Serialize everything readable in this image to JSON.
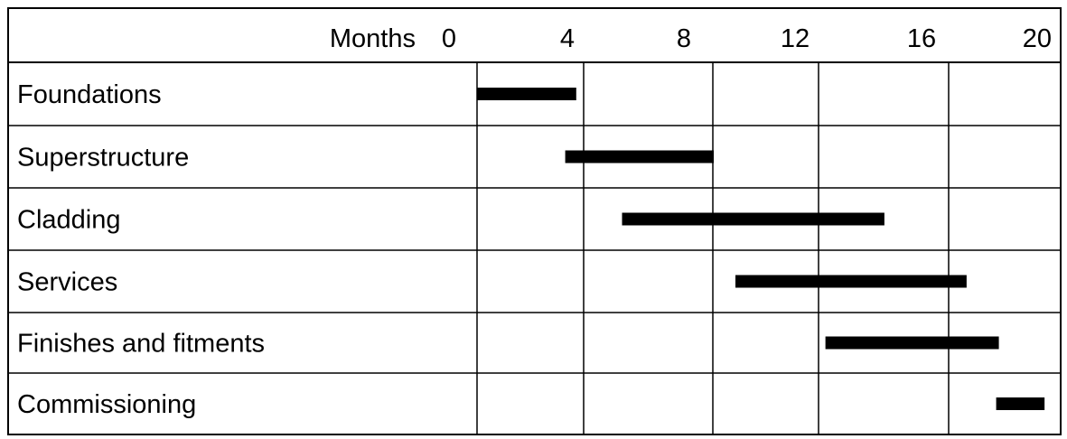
{
  "chart_data": {
    "type": "gantt",
    "axis_title": "Months",
    "ticks": [
      0,
      4,
      8,
      12,
      16,
      20
    ],
    "x_range": [
      0,
      20
    ],
    "tasks": [
      {
        "name": "Foundations",
        "start": 0,
        "end": 3.6
      },
      {
        "name": "Superstructure",
        "start": 3.2,
        "end": 8.0
      },
      {
        "name": "Cladding",
        "start": 5.1,
        "end": 13.9
      },
      {
        "name": "Services",
        "start": 8.8,
        "end": 16.5
      },
      {
        "name": "Finishes and fitments",
        "start": 12.1,
        "end": 17.7
      },
      {
        "name": "Commissioning",
        "start": 17.6,
        "end": 19.4
      }
    ],
    "bar_color": "#000000",
    "grid": true
  }
}
